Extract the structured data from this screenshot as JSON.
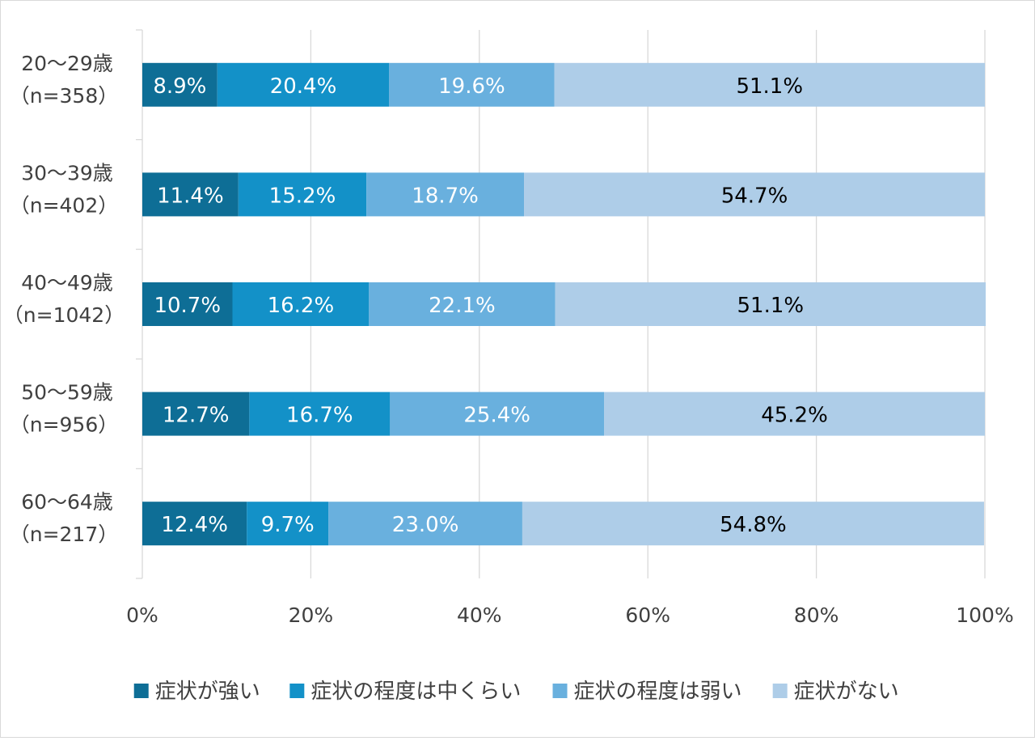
{
  "chart_data": {
    "type": "bar",
    "orientation": "horizontal",
    "stacked": true,
    "percent": true,
    "title": "",
    "xlabel": "",
    "ylabel": "",
    "xlim": [
      0,
      100
    ],
    "x_ticks": [
      "0%",
      "20%",
      "40%",
      "60%",
      "80%",
      "100%"
    ],
    "x_tick_values": [
      0,
      20,
      40,
      60,
      80,
      100
    ],
    "grid": "vertical",
    "legend_position": "bottom",
    "categories": [
      {
        "line1": "20～29歳",
        "line2": "（n=358）"
      },
      {
        "line1": "30～39歳",
        "line2": "（n=402）"
      },
      {
        "line1": "40～49歳",
        "line2": "（n=1042）"
      },
      {
        "line1": "50～59歳",
        "line2": "（n=956）"
      },
      {
        "line1": "60～64歳",
        "line2": "（n=217）"
      }
    ],
    "series": [
      {
        "name": "症状が強い",
        "color": "#0e6e96",
        "label_color": "#ffffff",
        "values": [
          8.9,
          11.4,
          10.7,
          12.7,
          12.4
        ],
        "labels": [
          "8.9%",
          "11.4%",
          "10.7%",
          "12.7%",
          "12.4%"
        ]
      },
      {
        "name": "症状の程度は中くらい",
        "color": "#1391c8",
        "label_color": "#ffffff",
        "values": [
          20.4,
          15.2,
          16.2,
          16.7,
          9.7
        ],
        "labels": [
          "20.4%",
          "15.2%",
          "16.2%",
          "16.7%",
          "9.7%"
        ]
      },
      {
        "name": "症状の程度は弱い",
        "color": "#69b0de",
        "label_color": "#ffffff",
        "values": [
          19.6,
          18.7,
          22.1,
          25.4,
          23.0
        ],
        "labels": [
          "19.6%",
          "18.7%",
          "22.1%",
          "25.4%",
          "23.0%"
        ]
      },
      {
        "name": "症状がない",
        "color": "#aecde8",
        "label_color": "#000000",
        "values": [
          51.1,
          54.7,
          51.1,
          45.2,
          54.8
        ],
        "labels": [
          "51.1%",
          "54.7%",
          "51.1%",
          "45.2%",
          "54.8%"
        ]
      }
    ],
    "colors": {
      "grid": "#d9d9d9",
      "axis_text": "#404040"
    }
  }
}
